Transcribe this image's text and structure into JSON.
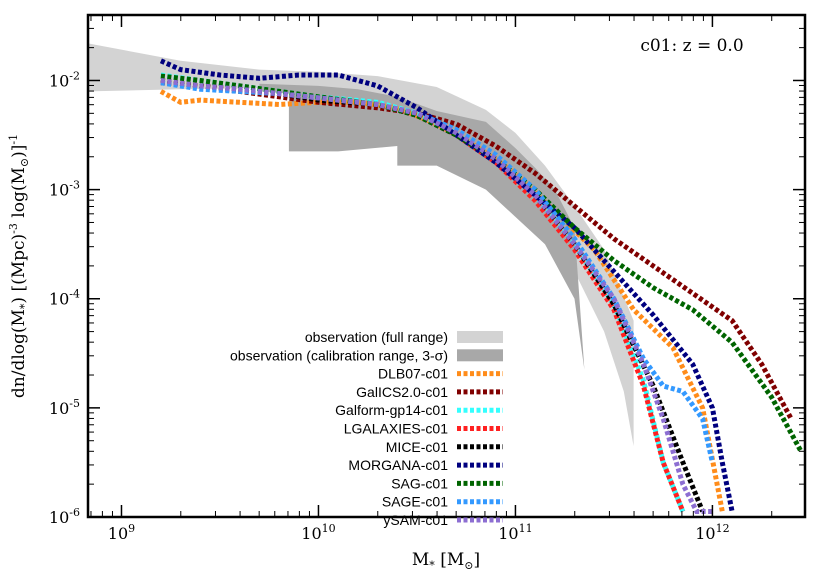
{
  "chart_data": {
    "type": "line",
    "annotation": "c01: z = 0.0",
    "xscale": "log",
    "yscale": "log",
    "xlim_exp": [
      8.83,
      12.47
    ],
    "ylim_exp": [
      -6,
      -1.4
    ],
    "xlabel": {
      "main": "M",
      "sub": "*",
      "rest": " [M",
      "sun": "⊙",
      "close": "]"
    },
    "ylabel": {
      "a": "dn/dlog(M",
      "a_sub": "*",
      "b": ") [(Mpc)",
      "b_sup": "-3",
      "c": " log(M",
      "c_sub": "⊙",
      "d": ")]",
      "d_sup": "-1"
    },
    "x_ticks": [
      {
        "exp": 9,
        "label_base": "10",
        "label_exp": "9"
      },
      {
        "exp": 10,
        "label_base": "10",
        "label_exp": "10"
      },
      {
        "exp": 11,
        "label_base": "10",
        "label_exp": "11"
      },
      {
        "exp": 12,
        "label_base": "10",
        "label_exp": "12"
      }
    ],
    "y_ticks": [
      {
        "exp": -6,
        "label_base": "10",
        "label_exp": "-6"
      },
      {
        "exp": -5,
        "label_base": "10",
        "label_exp": "-5"
      },
      {
        "exp": -4,
        "label_base": "10",
        "label_exp": "-4"
      },
      {
        "exp": -3,
        "label_base": "10",
        "label_exp": "-3"
      },
      {
        "exp": -2,
        "label_base": "10",
        "label_exp": "-2"
      }
    ],
    "legend_position": "bottom-center",
    "bands": [
      {
        "name": "observation (full range)",
        "color": "#d3d3d3",
        "polygon": [
          [
            8.83,
            -1.66
          ],
          [
            9.3,
            -1.82
          ],
          [
            9.7,
            -1.9
          ],
          [
            10.0,
            -1.92
          ],
          [
            10.3,
            -1.96
          ],
          [
            10.6,
            -2.06
          ],
          [
            10.85,
            -2.27
          ],
          [
            11.0,
            -2.48
          ],
          [
            11.15,
            -2.78
          ],
          [
            11.3,
            -3.15
          ],
          [
            11.45,
            -3.55
          ],
          [
            11.6,
            -4.2
          ],
          [
            11.6,
            -5.35
          ],
          [
            11.55,
            -4.85
          ],
          [
            11.45,
            -4.3
          ],
          [
            11.3,
            -3.75
          ],
          [
            11.15,
            -3.3
          ],
          [
            11.0,
            -2.98
          ],
          [
            10.85,
            -2.72
          ],
          [
            10.6,
            -2.4
          ],
          [
            10.3,
            -2.15
          ],
          [
            10.0,
            -2.07
          ],
          [
            9.7,
            -2.07
          ],
          [
            9.3,
            -2.08
          ],
          [
            8.83,
            -2.1
          ]
        ]
      },
      {
        "name": "observation (calibration range, 3-σ)",
        "color": "#a8a8a8",
        "polygon": [
          [
            9.7,
            -2.03
          ],
          [
            10.0,
            -2.05
          ],
          [
            10.2,
            -2.08
          ],
          [
            10.4,
            -2.15
          ],
          [
            10.6,
            -2.28
          ],
          [
            10.85,
            -2.38
          ],
          [
            11.0,
            -2.62
          ],
          [
            11.1,
            -2.8
          ],
          [
            11.2,
            -3.0
          ],
          [
            11.3,
            -3.35
          ],
          [
            11.35,
            -4.65
          ],
          [
            11.3,
            -4.0
          ],
          [
            11.15,
            -3.5
          ],
          [
            11.0,
            -3.25
          ],
          [
            10.85,
            -3.0
          ],
          [
            10.6,
            -2.78
          ],
          [
            10.4,
            -2.78
          ],
          [
            10.4,
            -2.6
          ],
          [
            10.1,
            -2.65
          ],
          [
            9.85,
            -2.65
          ],
          [
            9.85,
            -2.12
          ],
          [
            9.7,
            -2.1
          ]
        ]
      }
    ],
    "series": [
      {
        "name": "DLB07-c01",
        "color": "#ff8c1a",
        "points": [
          [
            9.2,
            -2.1
          ],
          [
            9.3,
            -2.2
          ],
          [
            9.4,
            -2.18
          ],
          [
            9.6,
            -2.2
          ],
          [
            9.8,
            -2.22
          ],
          [
            10.0,
            -2.2
          ],
          [
            10.2,
            -2.2
          ],
          [
            10.4,
            -2.25
          ],
          [
            10.6,
            -2.4
          ],
          [
            10.8,
            -2.6
          ],
          [
            11.0,
            -2.85
          ],
          [
            11.2,
            -3.2
          ],
          [
            11.4,
            -3.55
          ],
          [
            11.6,
            -4.1
          ],
          [
            11.8,
            -4.45
          ],
          [
            11.95,
            -5.0
          ],
          [
            12.05,
            -5.95
          ]
        ]
      },
      {
        "name": "GalICS2.0-c01",
        "color": "#800000",
        "points": [
          [
            9.2,
            -2.02
          ],
          [
            9.4,
            -2.05
          ],
          [
            9.6,
            -2.1
          ],
          [
            9.8,
            -2.15
          ],
          [
            10.0,
            -2.2
          ],
          [
            10.3,
            -2.25
          ],
          [
            10.5,
            -2.3
          ],
          [
            10.7,
            -2.4
          ],
          [
            10.9,
            -2.6
          ],
          [
            11.1,
            -2.85
          ],
          [
            11.3,
            -3.15
          ],
          [
            11.5,
            -3.45
          ],
          [
            11.7,
            -3.7
          ],
          [
            11.9,
            -3.95
          ],
          [
            12.1,
            -4.2
          ],
          [
            12.25,
            -4.6
          ],
          [
            12.4,
            -5.1
          ]
        ]
      },
      {
        "name": "Galform-gp14-c01",
        "color": "#33ffff",
        "points": [
          [
            9.2,
            -1.95
          ],
          [
            9.4,
            -2.0
          ],
          [
            9.6,
            -2.05
          ],
          [
            9.8,
            -2.1
          ],
          [
            10.0,
            -2.15
          ],
          [
            10.3,
            -2.2
          ],
          [
            10.5,
            -2.3
          ],
          [
            10.7,
            -2.48
          ],
          [
            10.9,
            -2.75
          ],
          [
            11.1,
            -3.05
          ],
          [
            11.3,
            -3.5
          ],
          [
            11.5,
            -4.05
          ],
          [
            11.65,
            -4.75
          ],
          [
            11.75,
            -5.5
          ],
          [
            11.85,
            -5.95
          ]
        ]
      },
      {
        "name": "LGALAXIES-c01",
        "color": "#ff2020",
        "points": [
          [
            9.2,
            -2.0
          ],
          [
            9.4,
            -2.05
          ],
          [
            9.6,
            -2.08
          ],
          [
            9.8,
            -2.12
          ],
          [
            10.0,
            -2.18
          ],
          [
            10.3,
            -2.22
          ],
          [
            10.5,
            -2.32
          ],
          [
            10.7,
            -2.5
          ],
          [
            10.9,
            -2.75
          ],
          [
            11.1,
            -3.1
          ],
          [
            11.3,
            -3.55
          ],
          [
            11.5,
            -4.1
          ],
          [
            11.65,
            -4.8
          ],
          [
            11.75,
            -5.5
          ],
          [
            11.85,
            -5.95
          ]
        ]
      },
      {
        "name": "MICE-c01",
        "color": "#000000",
        "points": [
          [
            9.2,
            -2.0
          ],
          [
            9.4,
            -2.05
          ],
          [
            9.6,
            -2.08
          ],
          [
            9.8,
            -2.12
          ],
          [
            10.0,
            -2.18
          ],
          [
            10.3,
            -2.22
          ],
          [
            10.5,
            -2.32
          ],
          [
            10.7,
            -2.5
          ],
          [
            10.9,
            -2.72
          ],
          [
            11.1,
            -3.05
          ],
          [
            11.3,
            -3.5
          ],
          [
            11.5,
            -4.05
          ],
          [
            11.7,
            -4.8
          ],
          [
            11.85,
            -5.5
          ],
          [
            11.95,
            -5.95
          ]
        ]
      },
      {
        "name": "MORGANA-c01",
        "color": "#00007f",
        "points": [
          [
            9.2,
            -1.82
          ],
          [
            9.3,
            -1.9
          ],
          [
            9.5,
            -1.95
          ],
          [
            9.7,
            -1.98
          ],
          [
            9.9,
            -1.95
          ],
          [
            10.1,
            -1.95
          ],
          [
            10.3,
            -2.05
          ],
          [
            10.5,
            -2.25
          ],
          [
            10.7,
            -2.5
          ],
          [
            10.9,
            -2.75
          ],
          [
            11.1,
            -3.05
          ],
          [
            11.3,
            -3.35
          ],
          [
            11.5,
            -3.75
          ],
          [
            11.7,
            -4.15
          ],
          [
            11.9,
            -4.6
          ],
          [
            12.0,
            -5.0
          ],
          [
            12.05,
            -5.5
          ],
          [
            12.1,
            -5.95
          ]
        ]
      },
      {
        "name": "SAG-c01",
        "color": "#006400",
        "points": [
          [
            9.2,
            -1.96
          ],
          [
            9.4,
            -2.0
          ],
          [
            9.6,
            -2.05
          ],
          [
            9.8,
            -2.1
          ],
          [
            10.0,
            -2.15
          ],
          [
            10.3,
            -2.22
          ],
          [
            10.5,
            -2.32
          ],
          [
            10.7,
            -2.5
          ],
          [
            10.9,
            -2.72
          ],
          [
            11.1,
            -3.0
          ],
          [
            11.3,
            -3.35
          ],
          [
            11.5,
            -3.65
          ],
          [
            11.7,
            -3.9
          ],
          [
            11.9,
            -4.1
          ],
          [
            12.1,
            -4.4
          ],
          [
            12.3,
            -4.9
          ],
          [
            12.45,
            -5.4
          ]
        ]
      },
      {
        "name": "SAGE-c01",
        "color": "#3399ff",
        "points": [
          [
            9.2,
            -2.02
          ],
          [
            9.4,
            -2.08
          ],
          [
            9.6,
            -2.1
          ],
          [
            9.8,
            -2.12
          ],
          [
            10.0,
            -2.16
          ],
          [
            10.3,
            -2.22
          ],
          [
            10.5,
            -2.3
          ],
          [
            10.7,
            -2.45
          ],
          [
            10.9,
            -2.68
          ],
          [
            11.1,
            -3.0
          ],
          [
            11.3,
            -3.45
          ],
          [
            11.5,
            -4.0
          ],
          [
            11.65,
            -4.55
          ],
          [
            11.75,
            -4.8
          ],
          [
            11.85,
            -4.85
          ],
          [
            11.95,
            -5.1
          ],
          [
            12.0,
            -5.5
          ]
        ]
      },
      {
        "name": "ySAM-c01",
        "color": "#8c6ed2",
        "points": [
          [
            9.2,
            -2.0
          ],
          [
            9.4,
            -2.05
          ],
          [
            9.6,
            -2.08
          ],
          [
            9.8,
            -2.12
          ],
          [
            10.0,
            -2.16
          ],
          [
            10.3,
            -2.22
          ],
          [
            10.5,
            -2.3
          ],
          [
            10.7,
            -2.48
          ],
          [
            10.9,
            -2.72
          ],
          [
            11.1,
            -3.05
          ],
          [
            11.3,
            -3.5
          ],
          [
            11.5,
            -4.0
          ],
          [
            11.65,
            -4.6
          ],
          [
            11.75,
            -5.1
          ],
          [
            11.85,
            -5.7
          ],
          [
            11.92,
            -5.95
          ],
          [
            12.0,
            -5.95
          ]
        ]
      }
    ]
  }
}
